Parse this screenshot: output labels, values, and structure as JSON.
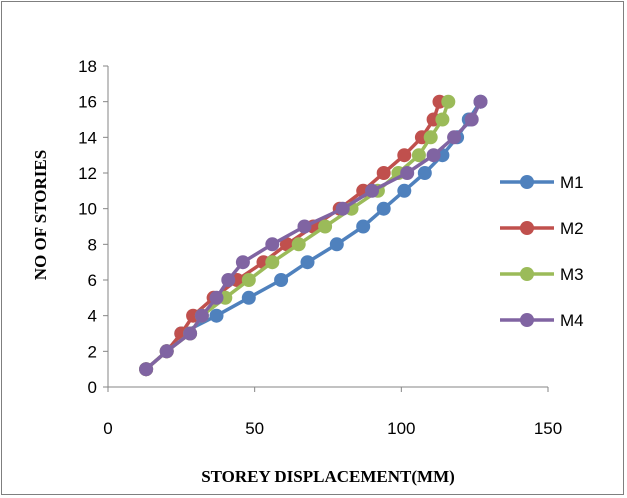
{
  "chart_data": {
    "type": "line",
    "title": "",
    "xlabel": "STOREY DISPLACEMENT(MM)",
    "ylabel": "NO OF STORIES",
    "xlim": [
      0,
      150
    ],
    "ylim": [
      0,
      18
    ],
    "xticks": [
      0,
      50,
      100,
      150
    ],
    "yticks": [
      0,
      2,
      4,
      6,
      8,
      10,
      12,
      14,
      16,
      18
    ],
    "grid": false,
    "legend_position": "right",
    "series": [
      {
        "name": "M1",
        "color": "#4f81bd",
        "points": [
          [
            13,
            1
          ],
          [
            20,
            2
          ],
          [
            25,
            3
          ],
          [
            37,
            4
          ],
          [
            48,
            5
          ],
          [
            59,
            6
          ],
          [
            68,
            7
          ],
          [
            78,
            8
          ],
          [
            87,
            9
          ],
          [
            94,
            10
          ],
          [
            101,
            11
          ],
          [
            108,
            12
          ],
          [
            114,
            13
          ],
          [
            119,
            14
          ],
          [
            123,
            15
          ],
          [
            127,
            16
          ]
        ]
      },
      {
        "name": "M2",
        "color": "#c0504d",
        "points": [
          [
            13,
            1
          ],
          [
            20,
            2
          ],
          [
            25,
            3
          ],
          [
            29,
            4
          ],
          [
            36,
            5
          ],
          [
            44,
            6
          ],
          [
            53,
            7
          ],
          [
            61,
            8
          ],
          [
            70,
            9
          ],
          [
            79,
            10
          ],
          [
            87,
            11
          ],
          [
            94,
            12
          ],
          [
            101,
            13
          ],
          [
            107,
            14
          ],
          [
            111,
            15
          ],
          [
            113,
            16
          ]
        ]
      },
      {
        "name": "M3",
        "color": "#9bbb59",
        "points": [
          [
            13,
            1
          ],
          [
            20,
            2
          ],
          [
            28,
            3
          ],
          [
            32,
            4
          ],
          [
            40,
            5
          ],
          [
            48,
            6
          ],
          [
            56,
            7
          ],
          [
            65,
            8
          ],
          [
            74,
            9
          ],
          [
            83,
            10
          ],
          [
            92,
            11
          ],
          [
            99,
            12
          ],
          [
            106,
            13
          ],
          [
            110,
            14
          ],
          [
            114,
            15
          ],
          [
            116,
            16
          ]
        ]
      },
      {
        "name": "M4",
        "color": "#8064a2",
        "points": [
          [
            13,
            1
          ],
          [
            20,
            2
          ],
          [
            28,
            3
          ],
          [
            32,
            4
          ],
          [
            37,
            5
          ],
          [
            41,
            6
          ],
          [
            46,
            7
          ],
          [
            56,
            8
          ],
          [
            67,
            9
          ],
          [
            80,
            10
          ],
          [
            90,
            11
          ],
          [
            102,
            12
          ],
          [
            111,
            13
          ],
          [
            118,
            14
          ],
          [
            124,
            15
          ],
          [
            127,
            16
          ]
        ]
      }
    ]
  }
}
